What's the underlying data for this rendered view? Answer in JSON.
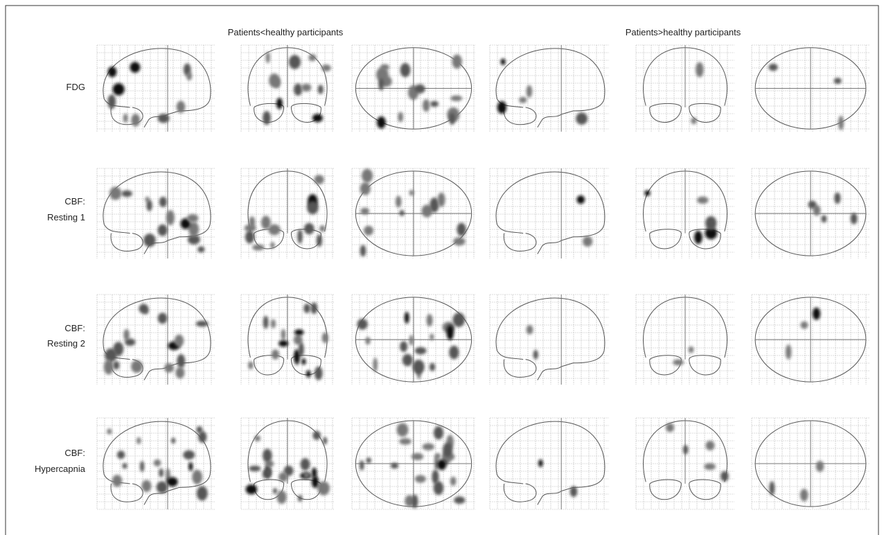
{
  "header": {
    "columns": [
      "Patients<healthy participants",
      "Patients>healthy participants"
    ]
  },
  "rows": [
    {
      "label": [
        "FDG"
      ]
    },
    {
      "label": [
        "CBF:",
        "Resting 1"
      ]
    },
    {
      "label": [
        "CBF:",
        "Resting 2"
      ]
    },
    {
      "label": [
        "CBF:",
        "Hypercapnia"
      ]
    }
  ]
}
